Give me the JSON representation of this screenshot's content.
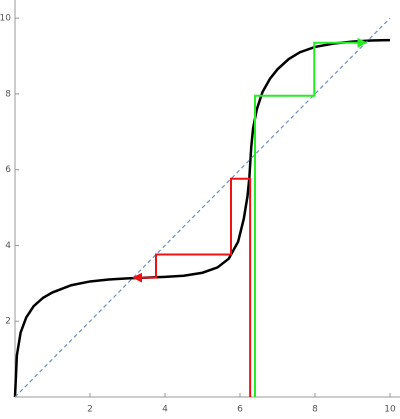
{
  "chart_data": {
    "type": "line",
    "xlim": [
      0,
      10.2
    ],
    "ylim": [
      0,
      10.5
    ],
    "xticks": [
      2,
      4,
      6,
      8,
      10
    ],
    "yticks": [
      2,
      4,
      6,
      8,
      10
    ],
    "series": [
      {
        "color": "#000000",
        "width": 2.5,
        "x": [
          0,
          0.05,
          0.15,
          0.3,
          0.5,
          0.75,
          1,
          1.5,
          2,
          2.5,
          3,
          3.5,
          4,
          4.5,
          5,
          5.4,
          5.7,
          5.95,
          6.1,
          6.2,
          6.25,
          6.3,
          6.35,
          6.45,
          6.6,
          6.8,
          7,
          7.3,
          7.6,
          8,
          8.5,
          9,
          9.5,
          10
        ],
        "values": [
          0,
          1.1,
          1.7,
          2.1,
          2.4,
          2.62,
          2.76,
          2.95,
          3.05,
          3.1,
          3.13,
          3.15,
          3.17,
          3.2,
          3.28,
          3.42,
          3.65,
          4.1,
          4.7,
          5.3,
          5.8,
          6.6,
          7.1,
          7.6,
          8.05,
          8.4,
          8.65,
          8.92,
          9.1,
          9.24,
          9.33,
          9.38,
          9.41,
          9.42
        ]
      },
      {
        "color": "#6f8fbf",
        "width": 1.2,
        "dashed": true,
        "x": [
          0,
          10
        ],
        "values": [
          0,
          10
        ]
      },
      {
        "color": "#ee1111",
        "width": 2,
        "arrow": true,
        "x": [
          6.27,
          6.27,
          5.76,
          5.76,
          3.76,
          3.76,
          3.15
        ],
        "values": [
          0,
          5.76,
          5.76,
          3.76,
          3.76,
          3.15,
          3.15
        ]
      },
      {
        "color": "#22ee22",
        "width": 2,
        "arrow": true,
        "x": [
          6.4,
          6.4,
          7.98,
          7.98,
          9.37
        ],
        "values": [
          0,
          7.95,
          7.95,
          9.35,
          9.35
        ]
      }
    ]
  }
}
